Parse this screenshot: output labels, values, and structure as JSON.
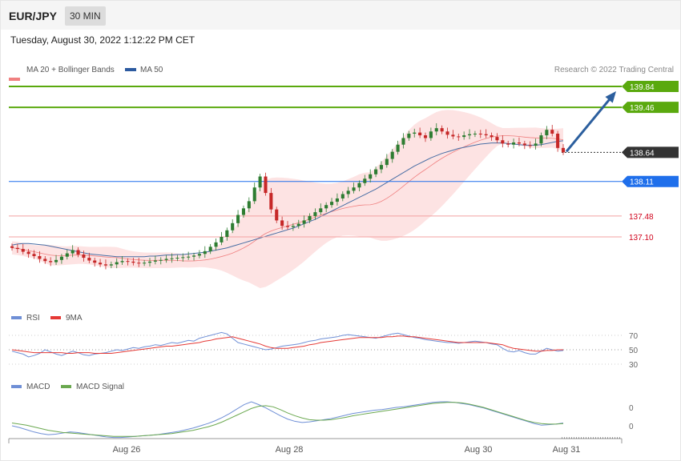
{
  "header": {
    "pair": "EUR/JPY",
    "timeframe": "30 MIN"
  },
  "date_line": "Tuesday, August 30, 2022 1:12:22 PM CET",
  "copyright": "Research © 2022 Trading Central",
  "colors": {
    "ma20": "#f08080",
    "band_fill": "#fde3e3",
    "ma50": "#4a6fa5",
    "up": "#2e7d32",
    "down": "#c62828",
    "target": "#5aa90e",
    "pivot": "#1f6feb",
    "support": "#f3a0a0",
    "support_text": "#d0021b",
    "last": "#333333",
    "arrow": "#2c5f9e",
    "rsi": "#6f8fd6",
    "rsi_ma": "#e53935",
    "macd": "#6f8fd6",
    "macd_signal": "#6aa84f"
  },
  "chart_data": [
    {
      "type": "line",
      "title": "",
      "legend": [
        {
          "name": "MA 20 + Bollinger Bands",
          "color": "#f08080"
        },
        {
          "name": "MA 50",
          "color": "#2c5aa0"
        }
      ],
      "x_labels": [
        "Aug 26",
        "Aug 28",
        "Aug 30",
        "Aug 31"
      ],
      "ylim": [
        136.5,
        140.2
      ],
      "levels": [
        {
          "value": 139.84,
          "label": "139.84",
          "kind": "target"
        },
        {
          "value": 139.46,
          "label": "139.46",
          "kind": "target"
        },
        {
          "value": 138.64,
          "label": "138.64",
          "kind": "last"
        },
        {
          "value": 138.11,
          "label": "138.11",
          "kind": "pivot"
        },
        {
          "value": 137.48,
          "label": "137.48",
          "kind": "support"
        },
        {
          "value": 137.1,
          "label": "137.10",
          "kind": "support"
        }
      ],
      "close": [
        136.9,
        136.88,
        136.83,
        136.79,
        136.75,
        136.7,
        136.66,
        136.64,
        136.68,
        136.74,
        136.8,
        136.86,
        136.78,
        136.72,
        136.67,
        136.63,
        136.6,
        136.58,
        136.6,
        136.64,
        136.66,
        136.65,
        136.63,
        136.62,
        136.63,
        136.65,
        136.67,
        136.68,
        136.7,
        136.71,
        136.72,
        136.73,
        136.74,
        136.76,
        136.79,
        136.84,
        136.92,
        137.0,
        137.1,
        137.22,
        137.35,
        137.5,
        137.62,
        137.75,
        138.0,
        138.2,
        137.9,
        137.6,
        137.4,
        137.3,
        137.28,
        137.3,
        137.34,
        137.4,
        137.48,
        137.55,
        137.62,
        137.68,
        137.74,
        137.8,
        137.88,
        137.94,
        138.0,
        138.08,
        138.16,
        138.24,
        138.33,
        138.41,
        138.52,
        138.65,
        138.78,
        138.9,
        138.98,
        139.0,
        138.95,
        138.9,
        139.02,
        139.08,
        139.02,
        138.96,
        138.93,
        138.92,
        138.95,
        138.97,
        138.98,
        138.97,
        138.95,
        138.92,
        138.86,
        138.8,
        138.78,
        138.82,
        138.8,
        138.77,
        138.76,
        138.8,
        138.95,
        139.05,
        138.98,
        138.72,
        138.64
      ],
      "ma50": [
        136.95,
        136.97,
        136.98,
        136.98,
        136.97,
        136.96,
        136.95,
        136.93,
        136.91,
        136.89,
        136.87,
        136.85,
        136.83,
        136.81,
        136.79,
        136.78,
        136.77,
        136.76,
        136.75,
        136.74,
        136.74,
        136.74,
        136.74,
        136.74,
        136.74,
        136.75,
        136.75,
        136.76,
        136.77,
        136.77,
        136.78,
        136.78,
        136.79,
        136.8,
        136.81,
        136.82,
        136.84,
        136.86,
        136.88,
        136.9,
        136.93,
        136.96,
        136.99,
        137.02,
        137.05,
        137.08,
        137.11,
        137.14,
        137.17,
        137.2,
        137.23,
        137.26,
        137.3,
        137.34,
        137.38,
        137.42,
        137.47,
        137.52,
        137.57,
        137.62,
        137.67,
        137.72,
        137.77,
        137.82,
        137.87,
        137.92,
        137.97,
        138.03,
        138.09,
        138.15,
        138.21,
        138.27,
        138.33,
        138.39,
        138.44,
        138.49,
        138.54,
        138.58,
        138.62,
        138.65,
        138.68,
        138.71,
        138.73,
        138.75,
        138.77,
        138.79,
        138.8,
        138.81,
        138.81,
        138.81,
        138.8,
        138.79,
        138.78,
        138.77,
        138.77,
        138.77,
        138.78,
        138.8,
        138.82,
        138.84,
        138.85
      ]
    },
    {
      "type": "line",
      "name": "RSI",
      "legend": [
        {
          "name": "RSI",
          "color": "#6f8fd6"
        },
        {
          "name": "9MA",
          "color": "#e53935"
        }
      ],
      "levels": [
        70,
        50,
        30
      ],
      "ylim": [
        20,
        80
      ],
      "rsi": [
        48,
        46,
        44,
        40,
        42,
        45,
        50,
        47,
        44,
        42,
        45,
        48,
        46,
        43,
        42,
        44,
        45,
        46,
        48,
        50,
        49,
        51,
        53,
        52,
        54,
        55,
        57,
        56,
        58,
        60,
        59,
        61,
        63,
        62,
        66,
        68,
        70,
        72,
        74,
        72,
        66,
        60,
        58,
        56,
        54,
        52,
        50,
        51,
        53,
        55,
        56,
        57,
        58,
        60,
        62,
        63,
        65,
        66,
        67,
        68,
        70,
        71,
        70,
        69,
        68,
        67,
        66,
        68,
        70,
        72,
        73,
        71,
        69,
        67,
        66,
        64,
        63,
        62,
        61,
        60,
        60,
        59,
        60,
        61,
        62,
        61,
        60,
        58,
        57,
        52,
        48,
        47,
        49,
        46,
        44,
        44,
        48,
        52,
        50,
        48,
        49
      ],
      "rsi_ma": [
        50,
        49,
        48,
        47,
        46,
        46,
        46,
        46,
        46,
        46,
        45,
        45,
        46,
        46,
        46,
        45,
        45,
        45,
        45,
        46,
        47,
        48,
        49,
        50,
        51,
        52,
        53,
        54,
        55,
        55,
        56,
        57,
        58,
        59,
        60,
        62,
        63,
        65,
        66,
        67,
        68,
        66,
        64,
        62,
        60,
        58,
        55,
        53,
        52,
        52,
        52,
        53,
        54,
        55,
        57,
        58,
        60,
        61,
        62,
        63,
        64,
        65,
        66,
        67,
        67,
        67,
        67,
        67,
        68,
        68,
        69,
        69,
        68,
        68,
        67,
        66,
        65,
        64,
        63,
        62,
        61,
        60,
        60,
        60,
        60,
        60,
        60,
        59,
        58,
        57,
        54,
        52,
        51,
        50,
        49,
        48,
        48,
        49,
        49,
        50,
        50
      ]
    },
    {
      "type": "line",
      "name": "MACD",
      "legend": [
        {
          "name": "MACD",
          "color": "#6f8fd6"
        },
        {
          "name": "MACD Signal",
          "color": "#6aa84f"
        }
      ],
      "levels": [
        {
          "value": 0.28,
          "label": "0"
        },
        {
          "value": -0.05,
          "label": "0"
        }
      ],
      "ylim": [
        -0.3,
        0.6
      ],
      "macd": [
        -0.05,
        -0.08,
        -0.12,
        -0.16,
        -0.19,
        -0.21,
        -0.2,
        -0.18,
        -0.16,
        -0.17,
        -0.19,
        -0.21,
        -0.23,
        -0.25,
        -0.26,
        -0.26,
        -0.25,
        -0.24,
        -0.23,
        -0.22,
        -0.21,
        -0.19,
        -0.17,
        -0.15,
        -0.12,
        -0.09,
        -0.05,
        -0.01,
        0.04,
        0.1,
        0.17,
        0.25,
        0.33,
        0.38,
        0.33,
        0.27,
        0.2,
        0.13,
        0.07,
        0.03,
        0.01,
        0.02,
        0.04,
        0.06,
        0.08,
        0.11,
        0.14,
        0.17,
        0.19,
        0.21,
        0.23,
        0.24,
        0.26,
        0.28,
        0.29,
        0.31,
        0.33,
        0.35,
        0.37,
        0.38,
        0.38,
        0.37,
        0.35,
        0.33,
        0.3,
        0.27,
        0.23,
        0.19,
        0.15,
        0.11,
        0.07,
        0.03,
        -0.01,
        -0.04,
        -0.03,
        -0.02,
        0.0
      ],
      "signal": [
        0.0,
        -0.02,
        -0.04,
        -0.07,
        -0.1,
        -0.13,
        -0.15,
        -0.17,
        -0.18,
        -0.19,
        -0.2,
        -0.21,
        -0.22,
        -0.23,
        -0.24,
        -0.24,
        -0.24,
        -0.24,
        -0.23,
        -0.22,
        -0.21,
        -0.2,
        -0.19,
        -0.17,
        -0.15,
        -0.13,
        -0.1,
        -0.07,
        -0.03,
        0.02,
        0.08,
        0.14,
        0.2,
        0.26,
        0.3,
        0.31,
        0.29,
        0.24,
        0.18,
        0.13,
        0.09,
        0.06,
        0.05,
        0.05,
        0.06,
        0.08,
        0.1,
        0.13,
        0.15,
        0.17,
        0.19,
        0.21,
        0.23,
        0.25,
        0.27,
        0.29,
        0.31,
        0.33,
        0.35,
        0.36,
        0.37,
        0.37,
        0.36,
        0.34,
        0.31,
        0.28,
        0.24,
        0.2,
        0.16,
        0.12,
        0.08,
        0.04,
        0.01,
        -0.01,
        -0.02,
        -0.02,
        -0.01
      ]
    }
  ]
}
